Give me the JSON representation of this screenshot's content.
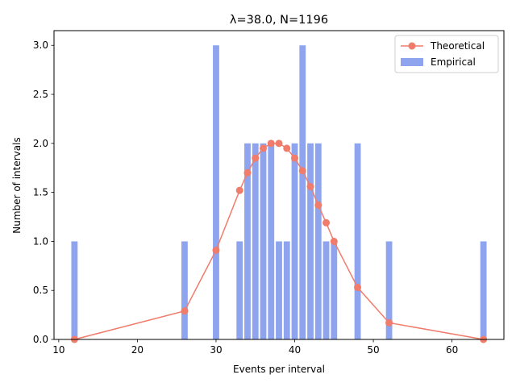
{
  "chart_data": {
    "type": "bar",
    "title": "λ=38.0, N=1196",
    "xlabel": "Events per interval",
    "ylabel": "Number of intervals",
    "xlim": [
      9.4,
      66.6
    ],
    "ylim": [
      0,
      3.15
    ],
    "xticks": [
      10,
      20,
      30,
      40,
      50,
      60
    ],
    "yticks": [
      0.0,
      0.5,
      1.0,
      1.5,
      2.0,
      2.5,
      3.0
    ],
    "xtick_labels": [
      "10",
      "20",
      "30",
      "40",
      "50",
      "60"
    ],
    "ytick_labels": [
      "0.0",
      "0.5",
      "1.0",
      "1.5",
      "2.0",
      "2.5",
      "3.0"
    ],
    "grid": false,
    "legend_position": "top-right",
    "series": [
      {
        "name": "Empirical",
        "kind": "bar",
        "color": "#8ea4ee",
        "x": [
          12,
          26,
          30,
          33,
          34,
          35,
          36,
          37,
          38,
          39,
          40,
          41,
          42,
          43,
          44,
          45,
          48,
          52,
          64
        ],
        "values": [
          1,
          1,
          3,
          1,
          2,
          2,
          2,
          2,
          1,
          1,
          2,
          3,
          2,
          2,
          1,
          1,
          2,
          1,
          1
        ]
      },
      {
        "name": "Theoretical",
        "kind": "line",
        "color": "#f07c6c",
        "x": [
          12,
          26,
          30,
          33,
          34,
          35,
          36,
          37,
          38,
          39,
          40,
          41,
          42,
          43,
          44,
          45,
          48,
          52,
          64
        ],
        "values": [
          0.0,
          0.29,
          0.91,
          1.52,
          1.7,
          1.85,
          1.95,
          2.0,
          2.0,
          1.95,
          1.85,
          1.72,
          1.56,
          1.37,
          1.19,
          1.0,
          0.53,
          0.17,
          0.0
        ]
      }
    ]
  }
}
